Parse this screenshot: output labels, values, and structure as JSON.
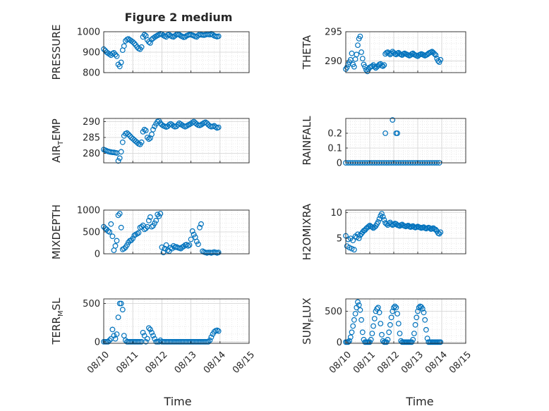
{
  "figure": {
    "title": "Figure 2 medium",
    "xlabel": "Time",
    "x_ticklabels": [
      "08/10",
      "08/11",
      "08/12",
      "08/13",
      "08/14",
      "08/15"
    ],
    "marker_color": "#0072BD"
  },
  "chart_data": [
    {
      "type": "scatter",
      "ylabel": "PRESSURE",
      "ylabel_parts": [
        "PRESSURE"
      ],
      "ylim": [
        800,
        1000
      ],
      "yticks": [
        800,
        900,
        1000
      ],
      "xlim": [
        0,
        5
      ],
      "x": [
        0.0,
        0.05,
        0.1,
        0.15,
        0.2,
        0.25,
        0.3,
        0.35,
        0.4,
        0.45,
        0.5,
        0.55,
        0.6,
        0.65,
        0.7,
        0.75,
        0.8,
        0.85,
        0.9,
        0.95,
        1.0,
        1.05,
        1.1,
        1.15,
        1.2,
        1.25,
        1.3,
        1.35,
        1.4,
        1.45,
        1.5,
        1.55,
        1.6,
        1.65,
        1.7,
        1.75,
        1.8,
        1.85,
        1.9,
        1.95,
        2.0,
        2.05,
        2.1,
        2.15,
        2.2,
        2.25,
        2.3,
        2.35,
        2.4,
        2.45,
        2.5,
        2.55,
        2.6,
        2.65,
        2.7,
        2.75,
        2.8,
        2.85,
        2.9,
        2.95,
        3.0,
        3.05,
        3.1,
        3.15,
        3.2,
        3.25,
        3.3,
        3.35,
        3.4,
        3.45,
        3.5,
        3.55,
        3.6,
        3.65,
        3.7,
        3.75,
        3.8,
        3.85,
        3.9,
        3.95
      ],
      "y": [
        915,
        908,
        900,
        895,
        890,
        885,
        893,
        897,
        888,
        880,
        840,
        830,
        850,
        910,
        930,
        955,
        962,
        965,
        960,
        955,
        950,
        943,
        935,
        925,
        918,
        915,
        925,
        975,
        985,
        980,
        960,
        950,
        945,
        962,
        968,
        973,
        978,
        982,
        985,
        990,
        988,
        982,
        978,
        975,
        984,
        986,
        980,
        977,
        975,
        980,
        986,
        988,
        985,
        980,
        977,
        973,
        975,
        980,
        983,
        986,
        985,
        983,
        980,
        977,
        975,
        982,
        988,
        985,
        984,
        983,
        985,
        988,
        987,
        986,
        990,
        985,
        980,
        978,
        976,
        978
      ]
    },
    {
      "type": "scatter",
      "ylabel": "THETA",
      "ylabel_parts": [
        "THETA"
      ],
      "ylim": [
        288,
        295
      ],
      "yticks": [
        290,
        295
      ],
      "xlim": [
        0,
        5
      ],
      "x": [
        0.0,
        0.05,
        0.1,
        0.15,
        0.2,
        0.25,
        0.3,
        0.35,
        0.4,
        0.45,
        0.5,
        0.55,
        0.6,
        0.65,
        0.7,
        0.75,
        0.8,
        0.85,
        0.9,
        0.95,
        1.0,
        1.05,
        1.1,
        1.15,
        1.2,
        1.25,
        1.3,
        1.35,
        1.4,
        1.45,
        1.5,
        1.55,
        1.6,
        1.65,
        1.7,
        1.75,
        1.8,
        1.85,
        1.9,
        1.95,
        2.0,
        2.05,
        2.1,
        2.15,
        2.2,
        2.25,
        2.3,
        2.35,
        2.4,
        2.45,
        2.5,
        2.55,
        2.6,
        2.65,
        2.7,
        2.75,
        2.8,
        2.85,
        2.9,
        2.95,
        3.0,
        3.05,
        3.1,
        3.15,
        3.2,
        3.25,
        3.3,
        3.35,
        3.4,
        3.45,
        3.5,
        3.55,
        3.6,
        3.65,
        3.7,
        3.75,
        3.8,
        3.85,
        3.9,
        3.95
      ],
      "y": [
        288.6,
        288.9,
        289.4,
        289.8,
        290.2,
        291.3,
        289.4,
        289.0,
        290.3,
        291.1,
        292.7,
        293.8,
        294.2,
        291.5,
        290.4,
        289.4,
        289.0,
        288.5,
        288.2,
        288.6,
        288.9,
        289.0,
        289.1,
        289.3,
        289.0,
        288.8,
        289.0,
        289.2,
        289.4,
        289.5,
        289.2,
        289.1,
        289.3,
        291.2,
        291.4,
        291.5,
        291.3,
        291.1,
        291.3,
        291.6,
        291.4,
        291.2,
        291.1,
        291.3,
        291.4,
        291.2,
        291.1,
        291.0,
        291.2,
        291.3,
        291.2,
        291.1,
        291.0,
        290.9,
        291.0,
        291.2,
        291.3,
        291.1,
        291.0,
        290.9,
        290.8,
        291.0,
        291.1,
        291.2,
        291.1,
        291.0,
        290.9,
        291.0,
        291.1,
        291.3,
        291.4,
        291.5,
        291.6,
        291.4,
        291.2,
        291.0,
        290.4,
        290.0,
        289.8,
        290.2
      ]
    },
    {
      "type": "scatter",
      "ylabel": "AIRTEMP",
      "ylabel_parts": [
        "AIR",
        "T",
        "EMP"
      ],
      "ylim": [
        277,
        291
      ],
      "yticks": [
        280,
        285,
        290
      ],
      "xlim": [
        0,
        5
      ],
      "x": [
        0.0,
        0.05,
        0.1,
        0.15,
        0.2,
        0.25,
        0.3,
        0.35,
        0.4,
        0.45,
        0.5,
        0.55,
        0.6,
        0.65,
        0.7,
        0.75,
        0.8,
        0.85,
        0.9,
        0.95,
        1.0,
        1.05,
        1.1,
        1.15,
        1.2,
        1.25,
        1.3,
        1.35,
        1.4,
        1.45,
        1.5,
        1.55,
        1.6,
        1.65,
        1.7,
        1.75,
        1.8,
        1.85,
        1.9,
        1.95,
        2.0,
        2.05,
        2.1,
        2.15,
        2.2,
        2.25,
        2.3,
        2.35,
        2.4,
        2.45,
        2.5,
        2.55,
        2.6,
        2.65,
        2.7,
        2.75,
        2.8,
        2.85,
        2.9,
        2.95,
        3.0,
        3.05,
        3.1,
        3.15,
        3.2,
        3.25,
        3.3,
        3.35,
        3.4,
        3.45,
        3.5,
        3.55,
        3.6,
        3.65,
        3.7,
        3.75,
        3.8,
        3.85,
        3.9,
        3.95
      ],
      "y": [
        281.2,
        281.0,
        280.8,
        280.6,
        280.5,
        280.4,
        280.3,
        280.3,
        280.2,
        280.1,
        277.6,
        278.5,
        280.5,
        283.5,
        285.5,
        286.2,
        286.4,
        286.0,
        285.5,
        285.0,
        284.6,
        284.2,
        283.8,
        283.4,
        283.0,
        282.8,
        283.5,
        286.8,
        287.5,
        287.2,
        285.0,
        284.5,
        284.8,
        286.0,
        287.5,
        288.5,
        289.3,
        290.0,
        290.2,
        289.5,
        289.0,
        288.7,
        288.5,
        288.3,
        288.5,
        289.0,
        289.3,
        289.0,
        288.6,
        288.4,
        288.5,
        289.0,
        289.5,
        289.2,
        288.9,
        288.6,
        288.4,
        288.6,
        288.9,
        289.1,
        289.4,
        289.7,
        290.0,
        289.6,
        289.2,
        288.9,
        288.8,
        289.0,
        289.3,
        289.6,
        289.8,
        289.5,
        289.0,
        288.6,
        288.4,
        288.5,
        288.7,
        288.3,
        288.0,
        288.2
      ]
    },
    {
      "type": "scatter",
      "ylabel": "RAINFALL",
      "ylabel_parts": [
        "RAINFALL"
      ],
      "ylim": [
        0,
        0.3
      ],
      "yticks": [
        0,
        0.1,
        0.2
      ],
      "xlim": [
        0,
        5
      ],
      "x": [
        0.0,
        0.1,
        0.2,
        0.3,
        0.4,
        0.5,
        0.6,
        0.7,
        0.8,
        0.9,
        1.0,
        1.1,
        1.2,
        1.3,
        1.4,
        1.5,
        1.6,
        1.7,
        1.8,
        1.9,
        2.0,
        2.1,
        2.2,
        2.3,
        2.4,
        2.5,
        2.6,
        2.7,
        2.8,
        2.9,
        3.0,
        3.1,
        3.2,
        3.3,
        3.4,
        3.5,
        3.6,
        3.7,
        3.8,
        3.9,
        1.65,
        1.95,
        2.1,
        2.15
      ],
      "y": [
        0,
        0,
        0,
        0,
        0,
        0,
        0,
        0,
        0,
        0,
        0,
        0,
        0,
        0,
        0,
        0,
        0,
        0,
        0,
        0,
        0,
        0,
        0,
        0,
        0,
        0,
        0,
        0,
        0,
        0,
        0,
        0,
        0,
        0,
        0,
        0,
        0,
        0,
        0,
        0,
        0.2,
        0.29,
        0.2,
        0.2
      ]
    },
    {
      "type": "scatter",
      "ylabel": "MIXDEPTH",
      "ylabel_parts": [
        "MIXDEPTH"
      ],
      "ylim": [
        0,
        1000
      ],
      "yticks": [
        0,
        500,
        1000
      ],
      "xlim": [
        0,
        5
      ],
      "x": [
        0.0,
        0.05,
        0.1,
        0.15,
        0.2,
        0.25,
        0.3,
        0.35,
        0.4,
        0.45,
        0.5,
        0.55,
        0.6,
        0.65,
        0.7,
        0.75,
        0.8,
        0.85,
        0.9,
        0.95,
        1.0,
        1.05,
        1.1,
        1.15,
        1.2,
        1.25,
        1.3,
        1.35,
        1.4,
        1.45,
        1.5,
        1.55,
        1.6,
        1.65,
        1.7,
        1.75,
        1.8,
        1.85,
        1.9,
        1.95,
        2.0,
        2.05,
        2.1,
        2.15,
        2.2,
        2.25,
        2.3,
        2.35,
        2.4,
        2.45,
        2.5,
        2.55,
        2.6,
        2.65,
        2.7,
        2.75,
        2.8,
        2.85,
        2.9,
        2.95,
        3.0,
        3.05,
        3.1,
        3.15,
        3.2,
        3.25,
        3.3,
        3.35,
        3.4,
        3.45,
        3.5,
        3.55,
        3.6,
        3.65,
        3.7,
        3.75,
        3.8,
        3.85,
        3.9,
        3.95
      ],
      "y": [
        620,
        580,
        560,
        520,
        500,
        680,
        400,
        80,
        180,
        300,
        880,
        920,
        600,
        100,
        120,
        150,
        200,
        260,
        300,
        310,
        350,
        420,
        440,
        460,
        480,
        600,
        620,
        650,
        560,
        580,
        620,
        760,
        840,
        620,
        640,
        700,
        760,
        900,
        860,
        920,
        150,
        30,
        120,
        200,
        80,
        60,
        140,
        120,
        180,
        150,
        160,
        140,
        130,
        120,
        150,
        170,
        200,
        210,
        180,
        200,
        330,
        520,
        440,
        380,
        280,
        220,
        600,
        680,
        60,
        40,
        30,
        20,
        30,
        30,
        20,
        30,
        40,
        30,
        20,
        30
      ]
    },
    {
      "type": "scatter",
      "ylabel": "H2OMIXRA",
      "ylabel_parts": [
        "H2OMIXRA"
      ],
      "ylim": [
        2,
        10.5
      ],
      "yticks": [
        5,
        10
      ],
      "xlim": [
        0,
        5
      ],
      "x": [
        0.0,
        0.05,
        0.1,
        0.15,
        0.2,
        0.25,
        0.3,
        0.35,
        0.4,
        0.45,
        0.5,
        0.55,
        0.6,
        0.65,
        0.7,
        0.75,
        0.8,
        0.85,
        0.9,
        0.95,
        1.0,
        1.05,
        1.1,
        1.15,
        1.2,
        1.25,
        1.3,
        1.35,
        1.4,
        1.45,
        1.5,
        1.55,
        1.6,
        1.65,
        1.7,
        1.75,
        1.8,
        1.85,
        1.9,
        1.95,
        2.0,
        2.05,
        2.1,
        2.15,
        2.2,
        2.25,
        2.3,
        2.35,
        2.4,
        2.45,
        2.5,
        2.55,
        2.6,
        2.65,
        2.7,
        2.75,
        2.8,
        2.85,
        2.9,
        2.95,
        3.0,
        3.05,
        3.1,
        3.15,
        3.2,
        3.25,
        3.3,
        3.35,
        3.4,
        3.45,
        3.5,
        3.55,
        3.6,
        3.65,
        3.7,
        3.75,
        3.8,
        3.85,
        3.9,
        3.95
      ],
      "y": [
        5.5,
        3.5,
        4.8,
        3.2,
        5.0,
        3.0,
        4.6,
        2.8,
        5.4,
        5.2,
        5.8,
        5.0,
        5.6,
        5.9,
        6.2,
        6.5,
        6.6,
        6.9,
        7.1,
        7.3,
        7.5,
        7.3,
        7.2,
        7.0,
        7.2,
        7.4,
        7.8,
        8.2,
        8.8,
        9.4,
        9.8,
        9.2,
        8.6,
        8.0,
        7.8,
        7.6,
        7.9,
        8.1,
        7.8,
        7.6,
        7.7,
        7.9,
        7.8,
        7.6,
        7.5,
        7.4,
        7.6,
        7.7,
        7.5,
        7.4,
        7.3,
        7.4,
        7.5,
        7.3,
        7.2,
        7.3,
        7.4,
        7.2,
        7.1,
        7.2,
        7.3,
        7.2,
        7.1,
        7.0,
        7.1,
        7.2,
        7.0,
        6.9,
        7.0,
        7.1,
        7.0,
        6.8,
        6.9,
        7.0,
        6.8,
        6.7,
        6.4,
        6.0,
        5.9,
        6.2
      ]
    },
    {
      "type": "scatter",
      "ylabel": "TERRMSL",
      "ylabel_parts": [
        "TERR",
        "M",
        "SL"
      ],
      "ylim": [
        -20,
        560
      ],
      "yticks": [
        0,
        500
      ],
      "xlim": [
        0,
        5
      ],
      "x": [
        0.0,
        0.05,
        0.1,
        0.15,
        0.2,
        0.25,
        0.3,
        0.35,
        0.4,
        0.45,
        0.5,
        0.55,
        0.6,
        0.65,
        0.7,
        0.75,
        0.8,
        0.85,
        0.9,
        0.95,
        1.0,
        1.05,
        1.1,
        1.15,
        1.2,
        1.25,
        1.3,
        1.35,
        1.4,
        1.45,
        1.5,
        1.55,
        1.6,
        1.65,
        1.7,
        1.75,
        1.8,
        1.85,
        1.9,
        1.95,
        2.0,
        2.05,
        2.1,
        2.15,
        2.2,
        2.25,
        2.3,
        2.35,
        2.4,
        2.45,
        2.5,
        2.55,
        2.6,
        2.65,
        2.7,
        2.75,
        2.8,
        2.85,
        2.9,
        2.95,
        3.0,
        3.05,
        3.1,
        3.15,
        3.2,
        3.25,
        3.3,
        3.35,
        3.4,
        3.45,
        3.5,
        3.55,
        3.6,
        3.65,
        3.7,
        3.75,
        3.8,
        3.85,
        3.9,
        3.95
      ],
      "y": [
        0,
        0,
        0,
        0,
        20,
        40,
        160,
        80,
        40,
        100,
        320,
        500,
        500,
        420,
        80,
        20,
        0,
        0,
        0,
        0,
        0,
        0,
        0,
        0,
        0,
        0,
        0,
        120,
        80,
        0,
        40,
        180,
        160,
        120,
        80,
        40,
        0,
        0,
        0,
        20,
        0,
        0,
        0,
        0,
        0,
        0,
        0,
        0,
        0,
        0,
        0,
        0,
        0,
        0,
        0,
        0,
        0,
        0,
        0,
        0,
        0,
        0,
        0,
        0,
        0,
        0,
        0,
        0,
        0,
        0,
        0,
        0,
        0,
        20,
        60,
        100,
        130,
        145,
        150,
        140
      ]
    },
    {
      "type": "scatter",
      "ylabel": "SUNFLUX",
      "ylabel_parts": [
        "SUN",
        "F",
        "LUX"
      ],
      "ylim": [
        -20,
        700
      ],
      "yticks": [
        0,
        500
      ],
      "xlim": [
        0,
        5
      ],
      "x": [
        0.0,
        0.05,
        0.1,
        0.15,
        0.2,
        0.25,
        0.3,
        0.35,
        0.4,
        0.45,
        0.5,
        0.55,
        0.6,
        0.65,
        0.7,
        0.75,
        0.8,
        0.85,
        0.9,
        0.95,
        1.0,
        1.05,
        1.1,
        1.15,
        1.2,
        1.25,
        1.3,
        1.35,
        1.4,
        1.45,
        1.5,
        1.55,
        1.6,
        1.65,
        1.7,
        1.75,
        1.8,
        1.85,
        1.9,
        1.95,
        2.0,
        2.05,
        2.1,
        2.15,
        2.2,
        2.25,
        2.3,
        2.35,
        2.4,
        2.45,
        2.5,
        2.55,
        2.6,
        2.65,
        2.7,
        2.75,
        2.8,
        2.85,
        2.9,
        2.95,
        3.0,
        3.05,
        3.1,
        3.15,
        3.2,
        3.25,
        3.3,
        3.35,
        3.4,
        3.45,
        3.5,
        3.55,
        3.6,
        3.65,
        3.7,
        3.75,
        3.8,
        3.85,
        3.9,
        3.95
      ],
      "y": [
        0,
        0,
        0,
        20,
        80,
        160,
        260,
        360,
        460,
        560,
        650,
        600,
        520,
        360,
        160,
        40,
        0,
        0,
        0,
        0,
        0,
        40,
        140,
        260,
        380,
        500,
        540,
        560,
        480,
        300,
        120,
        20,
        0,
        0,
        0,
        40,
        160,
        280,
        400,
        500,
        560,
        580,
        560,
        460,
        300,
        140,
        20,
        0,
        0,
        0,
        0,
        0,
        0,
        0,
        0,
        0,
        40,
        140,
        280,
        400,
        500,
        560,
        580,
        570,
        540,
        480,
        360,
        200,
        60,
        0,
        0,
        0,
        0,
        0,
        0,
        0,
        0,
        0,
        0,
        0
      ]
    }
  ]
}
